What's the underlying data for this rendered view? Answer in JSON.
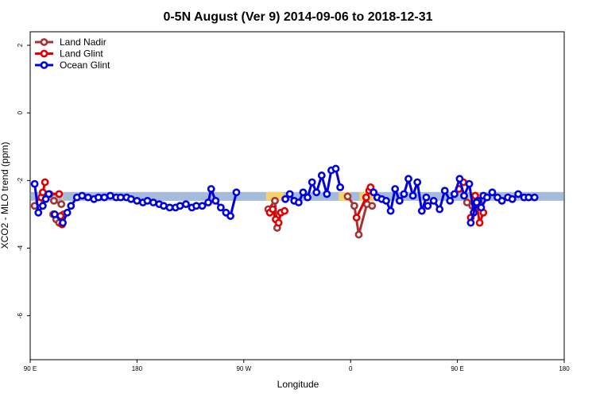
{
  "chart_data": {
    "type": "line",
    "title": "0-5N August (Ver 9)   2014-09-06 to 2018-12-31",
    "xlabel": "Longitude",
    "ylabel": "XCO2 - MLO trend (ppm)",
    "xlim": [
      90,
      450
    ],
    "ylim": [
      -7.3,
      2.4
    ],
    "x_ticks": [
      {
        "value": 90,
        "label": "90 E"
      },
      {
        "value": 162,
        "label": "180"
      },
      {
        "value": 234,
        "label": "90 W"
      },
      {
        "value": 306,
        "label": "0"
      },
      {
        "value": 378,
        "label": "90 E"
      },
      {
        "value": 450,
        "label": "180"
      }
    ],
    "y_ticks": [
      {
        "value": 2,
        "label": "2"
      },
      {
        "value": 0,
        "label": "0"
      },
      {
        "value": -2,
        "label": "-2"
      },
      {
        "value": -4,
        "label": "-4"
      },
      {
        "value": -6,
        "label": "-6"
      }
    ],
    "legend_position": "top-left",
    "band": {
      "y_center": -2.47,
      "half_width": 0.13,
      "colors": {
        "ocean": "#a5bbdc",
        "land": "#f6d16c"
      },
      "land_ranges": [
        [
          111.5,
          112
        ],
        [
          249,
          261
        ],
        [
          298,
          306
        ],
        [
          312,
          322
        ],
        [
          386,
          393
        ]
      ]
    },
    "series": [
      {
        "name": "Land Nadir",
        "color": "#a83232",
        "segments": [
          [
            [
              106,
              -2.6
            ],
            [
              111,
              -2.7
            ]
          ],
          [
            [
              93,
              -2.75
            ],
            [
              96,
              -2.65
            ]
          ],
          [
            [
              105.5,
              -3.0
            ],
            [
              107.5,
              -3.15
            ],
            [
              109.5,
              -3.25
            ],
            [
              112.5,
              -3.0
            ]
          ],
          [
            [
              250.5,
              -2.85
            ],
            [
              255,
              -2.6
            ],
            [
              256.5,
              -3.4
            ]
          ],
          [
            [
              304,
              -2.47
            ],
            [
              308.5,
              -2.75
            ],
            [
              311.5,
              -3.6
            ],
            [
              317,
              -2.7
            ],
            [
              320.5,
              -2.75
            ]
          ],
          [
            [
              384.5,
              -2.65
            ],
            [
              388,
              -2.75
            ],
            [
              392.5,
              -2.65
            ]
          ]
        ]
      },
      {
        "name": "Land Glint",
        "color": "#e10000",
        "segments": [
          [
            [
              97.5,
              -2.5
            ],
            [
              98.5,
              -2.35
            ],
            [
              100,
              -2.05
            ]
          ],
          [
            [
              103,
              -2.4
            ],
            [
              109.5,
              -2.4
            ]
          ],
          [
            [
              110.5,
              -3.05
            ],
            [
              111.5,
              -3.3
            ]
          ],
          [
            [
              251.5,
              -2.95
            ],
            [
              253.5,
              -2.85
            ],
            [
              255.5,
              -3.15
            ],
            [
              257.5,
              -3.25
            ],
            [
              259,
              -2.95
            ],
            [
              261.5,
              -2.9
            ]
          ],
          [
            [
              310,
              -3.1
            ],
            [
              316.5,
              -2.5
            ],
            [
              318.5,
              -2.3
            ],
            [
              319.5,
              -2.2
            ]
          ],
          [
            [
              379,
              -2.25
            ],
            [
              382,
              -2.05
            ]
          ],
          [
            [
              387,
              -3.1
            ],
            [
              390,
              -2.45
            ],
            [
              393,
              -3.25
            ],
            [
              395.5,
              -2.95
            ]
          ]
        ]
      },
      {
        "name": "Ocean Glint",
        "color": "#0000dd",
        "segments": [
          [
            [
              93,
              -2.1
            ],
            [
              95.5,
              -2.95
            ],
            [
              98.5,
              -2.75
            ],
            [
              100.5,
              -2.55
            ],
            [
              102.5,
              -2.4
            ]
          ],
          [
            [
              106.5,
              -3.0
            ],
            [
              112,
              -3.25
            ],
            [
              115,
              -2.95
            ],
            [
              117.5,
              -2.75
            ],
            [
              121.5,
              -2.5
            ],
            [
              125,
              -2.45
            ],
            [
              129,
              -2.5
            ],
            [
              133,
              -2.55
            ],
            [
              136,
              -2.5
            ],
            [
              140,
              -2.5
            ],
            [
              144,
              -2.45
            ],
            [
              148,
              -2.5
            ],
            [
              151,
              -2.5
            ],
            [
              155,
              -2.5
            ],
            [
              158,
              -2.55
            ],
            [
              162,
              -2.6
            ],
            [
              166,
              -2.65
            ],
            [
              169,
              -2.6
            ],
            [
              173,
              -2.65
            ],
            [
              177,
              -2.7
            ],
            [
              180,
              -2.75
            ],
            [
              184,
              -2.8
            ],
            [
              188,
              -2.8
            ],
            [
              191,
              -2.75
            ],
            [
              195,
              -2.7
            ],
            [
              199,
              -2.8
            ],
            [
              202,
              -2.75
            ],
            [
              206,
              -2.75
            ],
            [
              210,
              -2.65
            ],
            [
              212,
              -2.25
            ],
            [
              215,
              -2.6
            ],
            [
              218.5,
              -2.8
            ],
            [
              222,
              -2.95
            ],
            [
              225,
              -3.05
            ],
            [
              229,
              -2.35
            ]
          ],
          [
            [
              262,
              -2.55
            ],
            [
              265,
              -2.4
            ],
            [
              268,
              -2.6
            ],
            [
              271,
              -2.65
            ],
            [
              274,
              -2.35
            ],
            [
              277,
              -2.5
            ],
            [
              280,
              -2.05
            ],
            [
              283,
              -2.35
            ],
            [
              286.5,
              -1.85
            ],
            [
              290,
              -2.4
            ],
            [
              293,
              -1.7
            ],
            [
              296,
              -1.65
            ],
            [
              299,
              -2.2
            ]
          ],
          [
            [
              321.5,
              -2.35
            ],
            [
              324,
              -2.5
            ],
            [
              327,
              -2.55
            ],
            [
              330,
              -2.6
            ],
            [
              333,
              -2.9
            ],
            [
              336,
              -2.25
            ],
            [
              339,
              -2.6
            ],
            [
              342,
              -2.4
            ],
            [
              345,
              -1.95
            ],
            [
              348,
              -2.45
            ],
            [
              351,
              -2.05
            ],
            [
              354,
              -2.9
            ],
            [
              357,
              -2.5
            ]
          ],
          [
            [
              358,
              -2.75
            ],
            [
              362,
              -2.6
            ],
            [
              366,
              -2.85
            ],
            [
              369.5,
              -2.3
            ],
            [
              373,
              -2.6
            ],
            [
              376,
              -2.4
            ],
            [
              379.5,
              -1.95
            ],
            [
              382.5,
              -2.45
            ],
            [
              386,
              -2.1
            ],
            [
              389,
              -2.95
            ],
            [
              392,
              -2.6
            ],
            [
              395.5,
              -2.45
            ]
          ],
          [
            [
              387,
              -3.25
            ],
            [
              391,
              -2.65
            ],
            [
              394,
              -2.8
            ],
            [
              398,
              -2.5
            ],
            [
              401.5,
              -2.35
            ],
            [
              405,
              -2.5
            ],
            [
              408,
              -2.6
            ],
            [
              412,
              -2.5
            ],
            [
              415,
              -2.55
            ],
            [
              419,
              -2.4
            ],
            [
              423,
              -2.5
            ],
            [
              426,
              -2.5
            ],
            [
              430,
              -2.5
            ]
          ]
        ]
      }
    ]
  }
}
